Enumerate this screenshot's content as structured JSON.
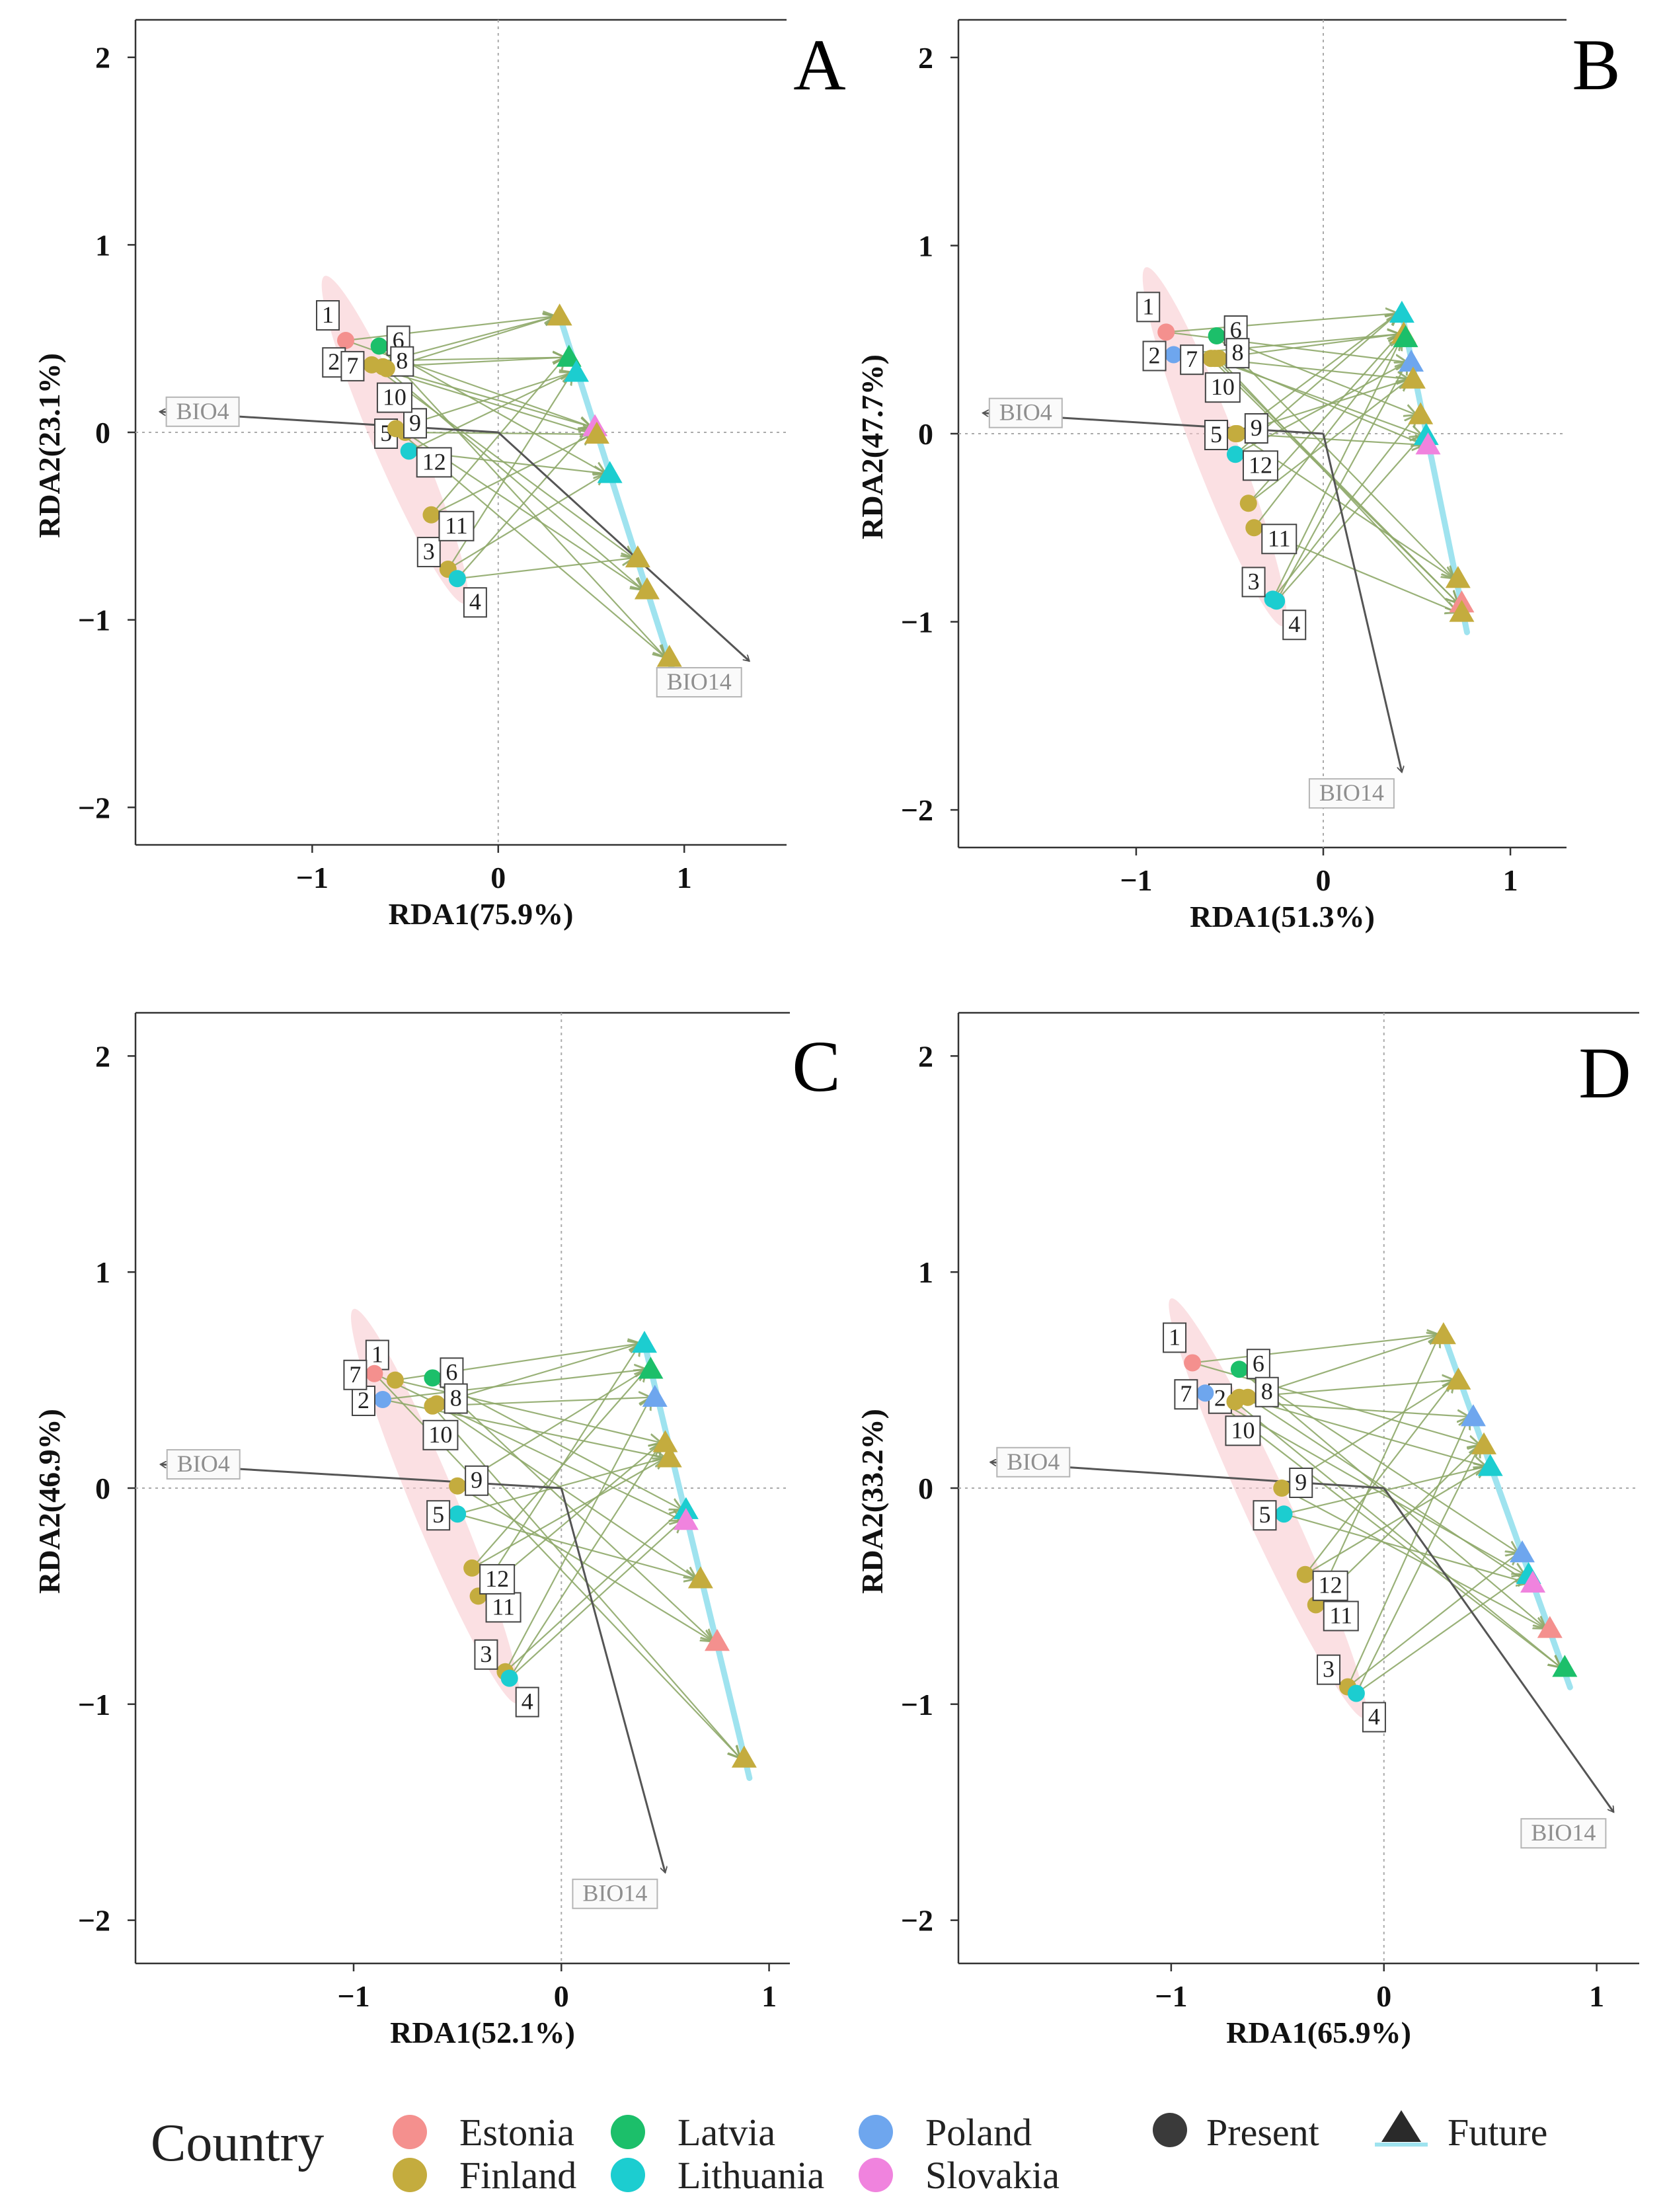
{
  "figure": {
    "legend": {
      "title": "Country",
      "countries": [
        {
          "name": "Estonia",
          "color": "#f4908e"
        },
        {
          "name": "Finland",
          "color": "#c4ac3e"
        },
        {
          "name": "Latvia",
          "color": "#1cbf6a"
        },
        {
          "name": "Lithuania",
          "color": "#1ccdd0"
        },
        {
          "name": "Poland",
          "color": "#6ea6ee"
        },
        {
          "name": "Slovakia",
          "color": "#f083de"
        }
      ],
      "periods": [
        {
          "name": "Present",
          "shape": "circle"
        },
        {
          "name": "Future",
          "shape": "triangle"
        }
      ]
    }
  },
  "chart_data": [
    {
      "panel": "A",
      "type": "scatter",
      "xlabel": "RDA1(75.9%)",
      "ylabel": "RDA2(23.1%)",
      "xlim": [
        -1.95,
        1.55
      ],
      "ylim": [
        -2.2,
        2.2
      ],
      "xticks": [
        "−1",
        "0",
        "1"
      ],
      "yticks": [
        "−2",
        "−1",
        "0",
        "1",
        "2"
      ],
      "vectors": [
        {
          "label": "BIO4",
          "x": -1.82,
          "y": 0.11
        },
        {
          "label": "BIO14",
          "x": 1.35,
          "y": -1.22
        }
      ],
      "present": [
        {
          "site": "1",
          "country": "Estonia",
          "x": -0.82,
          "y": 0.49
        },
        {
          "site": "2",
          "country": "Poland",
          "x": -0.78,
          "y": 0.38
        },
        {
          "site": "3",
          "country": "Finland",
          "x": -0.27,
          "y": -0.73
        },
        {
          "site": "4",
          "country": "Lithuania",
          "x": -0.22,
          "y": -0.78
        },
        {
          "site": "5",
          "country": "Finland",
          "x": -0.5,
          "y": 0.0
        },
        {
          "site": "6",
          "country": "Latvia",
          "x": -0.64,
          "y": 0.46
        },
        {
          "site": "7",
          "country": "Finland",
          "x": -0.68,
          "y": 0.36
        },
        {
          "site": "8",
          "country": "Finland",
          "x": -0.62,
          "y": 0.35
        },
        {
          "site": "9",
          "country": "Finland",
          "x": -0.55,
          "y": 0.02
        },
        {
          "site": "10",
          "country": "Finland",
          "x": -0.6,
          "y": 0.34
        },
        {
          "site": "11",
          "country": "Finland",
          "x": -0.36,
          "y": -0.44
        },
        {
          "site": "12",
          "country": "Lithuania",
          "x": -0.48,
          "y": -0.1
        }
      ],
      "future": [
        {
          "country": "Finland",
          "x": 0.33,
          "y": 0.62
        },
        {
          "country": "Latvia",
          "x": 0.38,
          "y": 0.4
        },
        {
          "country": "Lithuania",
          "x": 0.42,
          "y": 0.32
        },
        {
          "country": "Slovakia",
          "x": 0.52,
          "y": 0.03
        },
        {
          "country": "Finland",
          "x": 0.53,
          "y": -0.01
        },
        {
          "country": "Lithuania",
          "x": 0.6,
          "y": -0.22
        },
        {
          "country": "Finland",
          "x": 0.75,
          "y": -0.67
        },
        {
          "country": "Finland",
          "x": 0.8,
          "y": -0.84
        },
        {
          "country": "Finland",
          "x": 0.92,
          "y": -1.2
        }
      ]
    },
    {
      "panel": "B",
      "type": "scatter",
      "xlabel": "RDA1(51.3%)",
      "ylabel": "RDA2(47.7%)",
      "xlim": [
        -1.95,
        1.3
      ],
      "ylim": [
        -2.2,
        2.2
      ],
      "xticks": [
        "−1",
        "0",
        "1"
      ],
      "yticks": [
        "−2",
        "−1",
        "0",
        "1",
        "2"
      ],
      "vectors": [
        {
          "label": "BIO4",
          "x": -1.82,
          "y": 0.11
        },
        {
          "label": "BIO14",
          "x": 0.42,
          "y": -1.8
        }
      ],
      "present": [
        {
          "site": "1",
          "country": "Estonia",
          "x": -0.84,
          "y": 0.54
        },
        {
          "site": "2",
          "country": "Poland",
          "x": -0.8,
          "y": 0.42
        },
        {
          "site": "3",
          "country": "Lithuania",
          "x": -0.27,
          "y": -0.88
        },
        {
          "site": "4",
          "country": "Lithuania",
          "x": -0.25,
          "y": -0.89
        },
        {
          "site": "5",
          "country": "Finland",
          "x": -0.47,
          "y": 0.0
        },
        {
          "site": "6",
          "country": "Latvia",
          "x": -0.57,
          "y": 0.52
        },
        {
          "site": "7",
          "country": "Finland",
          "x": -0.6,
          "y": 0.4
        },
        {
          "site": "8",
          "country": "Finland",
          "x": -0.56,
          "y": 0.4
        },
        {
          "site": "9",
          "country": "Finland",
          "x": -0.46,
          "y": 0.0
        },
        {
          "site": "10",
          "country": "Finland",
          "x": -0.58,
          "y": 0.4
        },
        {
          "site": "11",
          "country": "Finland",
          "x": -0.37,
          "y": -0.5
        },
        {
          "site": "12",
          "country": "Lithuania",
          "x": -0.47,
          "y": -0.11
        },
        {
          "site": "",
          "country": "Finland",
          "x": -0.4,
          "y": -0.37
        }
      ],
      "future": [
        {
          "country": "Lithuania",
          "x": 0.42,
          "y": 0.64
        },
        {
          "country": "Finland",
          "x": 0.43,
          "y": 0.53
        },
        {
          "country": "Latvia",
          "x": 0.44,
          "y": 0.51
        },
        {
          "country": "Poland",
          "x": 0.47,
          "y": 0.38
        },
        {
          "country": "Finland",
          "x": 0.48,
          "y": 0.29
        },
        {
          "country": "Finland",
          "x": 0.52,
          "y": 0.1
        },
        {
          "country": "Lithuania",
          "x": 0.55,
          "y": -0.01
        },
        {
          "country": "Slovakia",
          "x": 0.56,
          "y": -0.06
        },
        {
          "country": "Finland",
          "x": 0.72,
          "y": -0.77
        },
        {
          "country": "Estonia",
          "x": 0.74,
          "y": -0.9
        },
        {
          "country": "Finland",
          "x": 0.74,
          "y": -0.95
        }
      ]
    },
    {
      "panel": "C",
      "type": "scatter",
      "xlabel": "RDA1(52.1%)",
      "ylabel": "RDA2(46.9%)",
      "xlim": [
        -2.05,
        1.1
      ],
      "ylim": [
        -2.2,
        2.2
      ],
      "xticks": [
        "−1",
        "0",
        "1"
      ],
      "yticks": [
        "−2",
        "−1",
        "0",
        "1",
        "2"
      ],
      "vectors": [
        {
          "label": "BIO4",
          "x": -1.93,
          "y": 0.11
        },
        {
          "label": "BIO14",
          "x": 0.5,
          "y": -1.78
        }
      ],
      "present": [
        {
          "site": "1",
          "country": "Finland",
          "x": -0.8,
          "y": 0.5
        },
        {
          "site": "2",
          "country": "Poland",
          "x": -0.86,
          "y": 0.41
        },
        {
          "site": "3",
          "country": "Finland",
          "x": -0.27,
          "y": -0.85
        },
        {
          "site": "4",
          "country": "Lithuania",
          "x": -0.25,
          "y": -0.88
        },
        {
          "site": "5",
          "country": "Lithuania",
          "x": -0.5,
          "y": -0.12
        },
        {
          "site": "6",
          "country": "Latvia",
          "x": -0.62,
          "y": 0.51
        },
        {
          "site": "7",
          "country": "Estonia",
          "x": -0.9,
          "y": 0.53
        },
        {
          "site": "8",
          "country": "Finland",
          "x": -0.6,
          "y": 0.39
        },
        {
          "site": "9",
          "country": "Finland",
          "x": -0.5,
          "y": 0.01
        },
        {
          "site": "10",
          "country": "Finland",
          "x": -0.62,
          "y": 0.38
        },
        {
          "site": "11",
          "country": "Finland",
          "x": -0.4,
          "y": -0.5
        },
        {
          "site": "12",
          "country": "Finland",
          "x": -0.43,
          "y": -0.37
        }
      ],
      "future": [
        {
          "country": "Lithuania",
          "x": 0.4,
          "y": 0.67
        },
        {
          "country": "Latvia",
          "x": 0.43,
          "y": 0.55
        },
        {
          "country": "Poland",
          "x": 0.45,
          "y": 0.42
        },
        {
          "country": "Finland",
          "x": 0.5,
          "y": 0.21
        },
        {
          "country": "Finland",
          "x": 0.52,
          "y": 0.14
        },
        {
          "country": "Lithuania",
          "x": 0.6,
          "y": -0.1
        },
        {
          "country": "Slovakia",
          "x": 0.6,
          "y": -0.15
        },
        {
          "country": "Finland",
          "x": 0.67,
          "y": -0.42
        },
        {
          "country": "Estonia",
          "x": 0.75,
          "y": -0.71
        },
        {
          "country": "Finland",
          "x": 0.88,
          "y": -1.25
        }
      ]
    },
    {
      "panel": "D",
      "type": "scatter",
      "xlabel": "RDA1(65.9%)",
      "ylabel": "RDA2(33.2%)",
      "xlim": [
        -2.0,
        1.2
      ],
      "ylim": [
        -2.2,
        2.2
      ],
      "xticks": [
        "−1",
        "0",
        "1"
      ],
      "yticks": [
        "−2",
        "−1",
        "0",
        "1",
        "2"
      ],
      "vectors": [
        {
          "label": "BIO4",
          "x": -1.85,
          "y": 0.12
        },
        {
          "label": "BIO14",
          "x": 1.08,
          "y": -1.5
        }
      ],
      "present": [
        {
          "site": "1",
          "country": "Estonia",
          "x": -0.9,
          "y": 0.58
        },
        {
          "site": "2",
          "country": "Finland",
          "x": -0.68,
          "y": 0.42
        },
        {
          "site": "3",
          "country": "Finland",
          "x": -0.17,
          "y": -0.92
        },
        {
          "site": "4",
          "country": "Lithuania",
          "x": -0.13,
          "y": -0.95
        },
        {
          "site": "5",
          "country": "Lithuania",
          "x": -0.47,
          "y": -0.12
        },
        {
          "site": "6",
          "country": "Latvia",
          "x": -0.68,
          "y": 0.55
        },
        {
          "site": "7",
          "country": "Poland",
          "x": -0.84,
          "y": 0.44
        },
        {
          "site": "8",
          "country": "Finland",
          "x": -0.64,
          "y": 0.42
        },
        {
          "site": "9",
          "country": "Finland",
          "x": -0.48,
          "y": 0.0
        },
        {
          "site": "10",
          "country": "Finland",
          "x": -0.7,
          "y": 0.4
        },
        {
          "site": "11",
          "country": "Finland",
          "x": -0.32,
          "y": -0.54
        },
        {
          "site": "12",
          "country": "Finland",
          "x": -0.37,
          "y": -0.4
        }
      ],
      "future": [
        {
          "country": "Finland",
          "x": 0.28,
          "y": 0.71
        },
        {
          "country": "Finland",
          "x": 0.35,
          "y": 0.5
        },
        {
          "country": "Poland",
          "x": 0.42,
          "y": 0.33
        },
        {
          "country": "Finland",
          "x": 0.47,
          "y": 0.2
        },
        {
          "country": "Lithuania",
          "x": 0.5,
          "y": 0.1
        },
        {
          "country": "Poland",
          "x": 0.65,
          "y": -0.3
        },
        {
          "country": "Lithuania",
          "x": 0.68,
          "y": -0.4
        },
        {
          "country": "Slovakia",
          "x": 0.7,
          "y": -0.44
        },
        {
          "country": "Estonia",
          "x": 0.78,
          "y": -0.65
        },
        {
          "country": "Latvia",
          "x": 0.85,
          "y": -0.83
        }
      ]
    }
  ]
}
